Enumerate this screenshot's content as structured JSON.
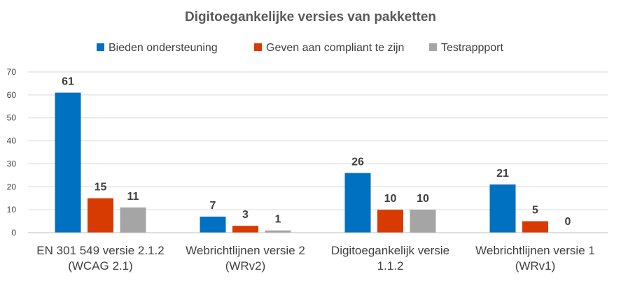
{
  "chart_data": {
    "type": "bar",
    "title": "Digitoegankelijke versies van pakketten",
    "categories": [
      [
        "EN 301 549 versie 2.1.2",
        "(WCAG 2.1)"
      ],
      [
        "Webrichtlijnen versie 2",
        "(WRv2)"
      ],
      [
        "Digitoegankelijk versie",
        "1.1.2"
      ],
      [
        "Webrichtlijnen versie 1",
        "(WRv1)"
      ]
    ],
    "series": [
      {
        "name": "Bieden ondersteuning",
        "color": "#0070C0",
        "values": [
          61,
          7,
          26,
          21
        ]
      },
      {
        "name": "Geven aan compliant te zijn",
        "color": "#D83B01",
        "values": [
          15,
          3,
          10,
          5
        ]
      },
      {
        "name": "Testrappport",
        "color": "#A5A5A5",
        "values": [
          11,
          1,
          10,
          0
        ]
      }
    ],
    "ylim": [
      0,
      70
    ],
    "yticks": [
      0,
      10,
      20,
      30,
      40,
      50,
      60,
      70
    ],
    "grid": true,
    "legend": "top",
    "xlabel": "",
    "ylabel": ""
  }
}
